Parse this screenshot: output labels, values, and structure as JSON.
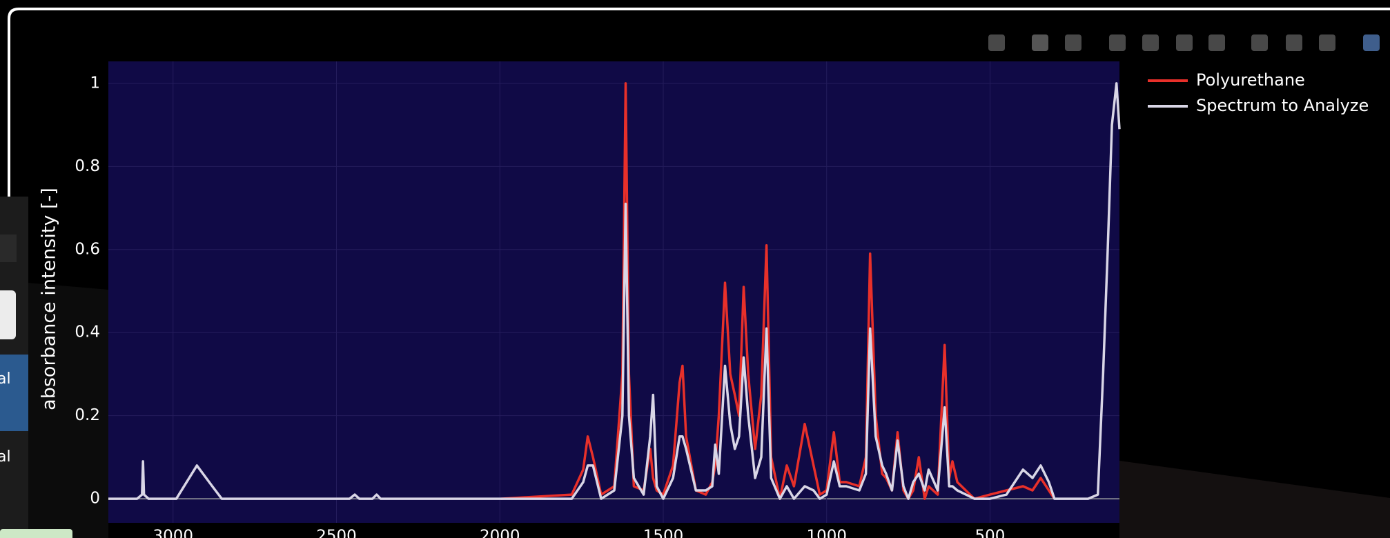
{
  "sidebar": {
    "items": [
      "al",
      "al"
    ]
  },
  "chart_data": {
    "type": "line",
    "y_label": "absorbance intensity [-]",
    "xlim": [
      3198,
      104
    ],
    "ylim": [
      -0.058,
      1.053
    ],
    "xticks": [
      3000,
      2500,
      2000,
      1500,
      1000,
      500
    ],
    "yticks": [
      0,
      0.2,
      0.4,
      0.6,
      0.8,
      1
    ],
    "grid": true,
    "legend": "right",
    "x": [
      3198,
      3110,
      3095,
      3092,
      3089,
      3075,
      2990,
      2927,
      2880,
      2851,
      2460,
      2444,
      2430,
      2390,
      2377,
      2365,
      1997,
      1780,
      1745,
      1731,
      1715,
      1690,
      1650,
      1625,
      1615,
      1605,
      1590,
      1560,
      1540,
      1531,
      1520,
      1500,
      1470,
      1450,
      1441,
      1430,
      1400,
      1370,
      1350,
      1341,
      1330,
      1311,
      1295,
      1281,
      1268,
      1254,
      1240,
      1219,
      1200,
      1184,
      1170,
      1143,
      1122,
      1100,
      1067,
      1040,
      1021,
      1000,
      978,
      960,
      940,
      900,
      880,
      867,
      850,
      830,
      818,
      800,
      783,
      765,
      750,
      735,
      718,
      700,
      688,
      660,
      639,
      625,
      615,
      600,
      548,
      500,
      450,
      399,
      370,
      345,
      320,
      303,
      250,
      200,
      170,
      154,
      140,
      127,
      113,
      104
    ],
    "series": [
      {
        "name": "Polyurethane",
        "color": "#e8302a",
        "values": [
          null,
          null,
          null,
          null,
          null,
          null,
          null,
          null,
          null,
          null,
          null,
          null,
          null,
          null,
          null,
          null,
          0,
          0.01,
          0.07,
          0.15,
          0.1,
          0.01,
          0.03,
          0.3,
          1.0,
          0.3,
          0.03,
          0.02,
          0.12,
          0.05,
          0.02,
          0.01,
          0.08,
          0.28,
          0.32,
          0.15,
          0.02,
          0.01,
          0.04,
          0.08,
          0.2,
          0.52,
          0.3,
          0.25,
          0.2,
          0.51,
          0.3,
          0.12,
          0.25,
          0.61,
          0.1,
          0,
          0.08,
          0.03,
          0.18,
          0.08,
          0.01,
          0.02,
          0.16,
          0.04,
          0.04,
          0.03,
          0.1,
          0.59,
          0.2,
          0.06,
          0.05,
          0.02,
          0.16,
          0.02,
          0,
          0.02,
          0.1,
          0,
          0.03,
          0.01,
          0.37,
          0.05,
          0.09,
          0.04,
          0,
          0.01,
          0.02,
          0.03,
          0.02,
          0.05,
          0.02,
          0,
          null,
          null,
          null,
          null,
          null,
          null,
          null,
          null
        ]
      },
      {
        "name": "Spectrum to Analyze",
        "color": "#d9d6e6",
        "values": [
          0,
          0,
          0.01,
          0.09,
          0.01,
          0,
          0,
          0.08,
          0.03,
          0,
          0,
          0.01,
          0,
          0,
          0.01,
          0,
          0,
          0,
          0.04,
          0.08,
          0.08,
          0,
          0.02,
          0.2,
          0.71,
          0.2,
          0.05,
          0.01,
          0.15,
          0.25,
          0.03,
          0,
          0.05,
          0.15,
          0.15,
          0.12,
          0.02,
          0.02,
          0.03,
          0.13,
          0.06,
          0.32,
          0.18,
          0.12,
          0.15,
          0.34,
          0.2,
          0.05,
          0.1,
          0.41,
          0.05,
          0,
          0.03,
          0,
          0.03,
          0.02,
          0,
          0.01,
          0.09,
          0.03,
          0.03,
          0.02,
          0.06,
          0.41,
          0.15,
          0.08,
          0.06,
          0.02,
          0.14,
          0.03,
          0,
          0.04,
          0.06,
          0.02,
          0.07,
          0.02,
          0.22,
          0.03,
          0.03,
          0.02,
          0,
          0,
          0.01,
          0.07,
          0.05,
          0.08,
          0.04,
          0,
          0,
          0,
          0.01,
          0.3,
          0.6,
          0.9,
          1.0,
          0.89
        ]
      }
    ]
  }
}
